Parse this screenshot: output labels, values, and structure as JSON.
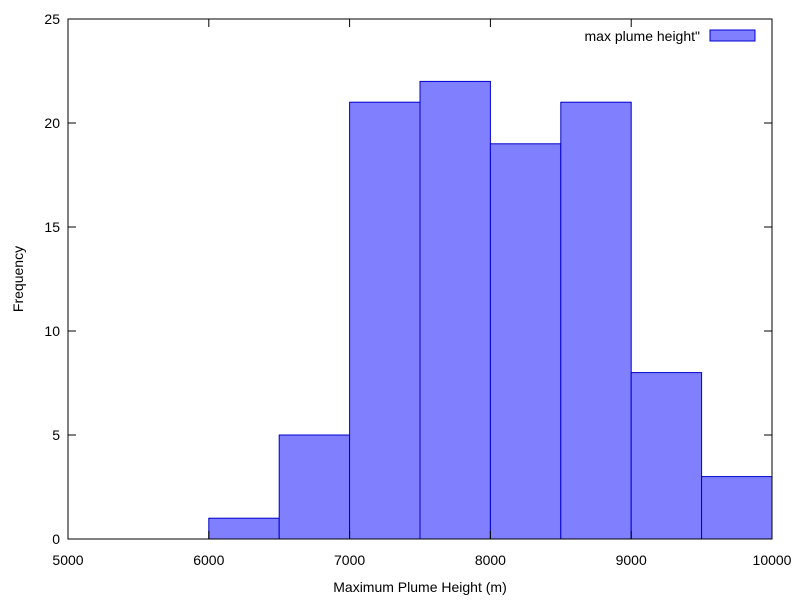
{
  "chart_data": {
    "type": "bar",
    "title": "",
    "xlabel": "Maximum Plume Height (m)",
    "ylabel": "Frequency",
    "xlim": [
      5000,
      10000
    ],
    "ylim": [
      0,
      25
    ],
    "xticks": [
      5000,
      6000,
      7000,
      8000,
      9000,
      10000
    ],
    "yticks": [
      0,
      5,
      10,
      15,
      20,
      25
    ],
    "grid": false,
    "legend_position": "top-right",
    "bar_color": "#8080ff",
    "edge_color": "#0000cc",
    "series": [
      {
        "name": "max plume height\"",
        "bins": [
          {
            "start": 6000,
            "end": 6500,
            "value": 1
          },
          {
            "start": 6500,
            "end": 7000,
            "value": 5
          },
          {
            "start": 7000,
            "end": 7500,
            "value": 21
          },
          {
            "start": 7500,
            "end": 8000,
            "value": 22
          },
          {
            "start": 8000,
            "end": 8500,
            "value": 19
          },
          {
            "start": 8500,
            "end": 9000,
            "value": 21
          },
          {
            "start": 9000,
            "end": 9500,
            "value": 8
          },
          {
            "start": 9500,
            "end": 10000,
            "value": 3
          }
        ]
      }
    ]
  }
}
